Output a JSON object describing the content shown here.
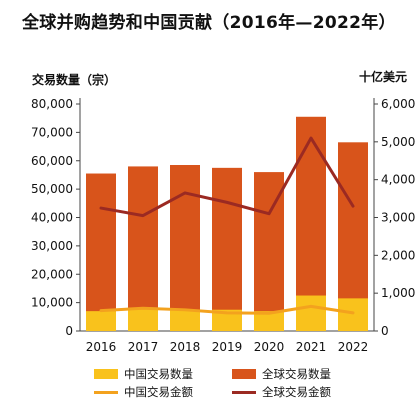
{
  "title": "全球并购趋势和中国贡献（2016年—2022年）",
  "left_axis_title": "交易数量（宗）",
  "right_axis_title": "十亿美元",
  "colors": {
    "global_count": "#d8541b",
    "china_count": "#f9c21c",
    "china_value": "#f3a21e",
    "global_value": "#9b2a22"
  },
  "chart_data": {
    "type": "bar",
    "categories": [
      "2016",
      "2017",
      "2018",
      "2019",
      "2020",
      "2021",
      "2022"
    ],
    "y_left": {
      "ylim": [
        0,
        80000
      ],
      "ticks": [
        "0",
        "10,000",
        "20,000",
        "30,000",
        "40,000",
        "50,000",
        "60,000",
        "70,000",
        "80,000"
      ]
    },
    "y_right": {
      "ylim": [
        0,
        6000
      ],
      "ticks": [
        "0",
        "1,000",
        "2,000",
        "3,000",
        "4,000",
        "5,000",
        "6,000"
      ]
    },
    "series": [
      {
        "name": "中国交易数量",
        "kind": "bar",
        "axis": "left",
        "values": [
          7000,
          8000,
          7500,
          7500,
          7000,
          12500,
          11500
        ]
      },
      {
        "name": "全球交易数量",
        "kind": "bar",
        "axis": "left",
        "values": [
          55500,
          58000,
          58500,
          57500,
          56000,
          75500,
          66500
        ]
      },
      {
        "name": "中国交易金额",
        "kind": "line",
        "axis": "right",
        "values": [
          540,
          600,
          560,
          480,
          470,
          650,
          480
        ]
      },
      {
        "name": "全球交易金额",
        "kind": "line",
        "axis": "right",
        "values": [
          3250,
          3050,
          3650,
          3400,
          3100,
          5100,
          3300
        ]
      }
    ],
    "grid": false,
    "legend_position": "bottom"
  }
}
